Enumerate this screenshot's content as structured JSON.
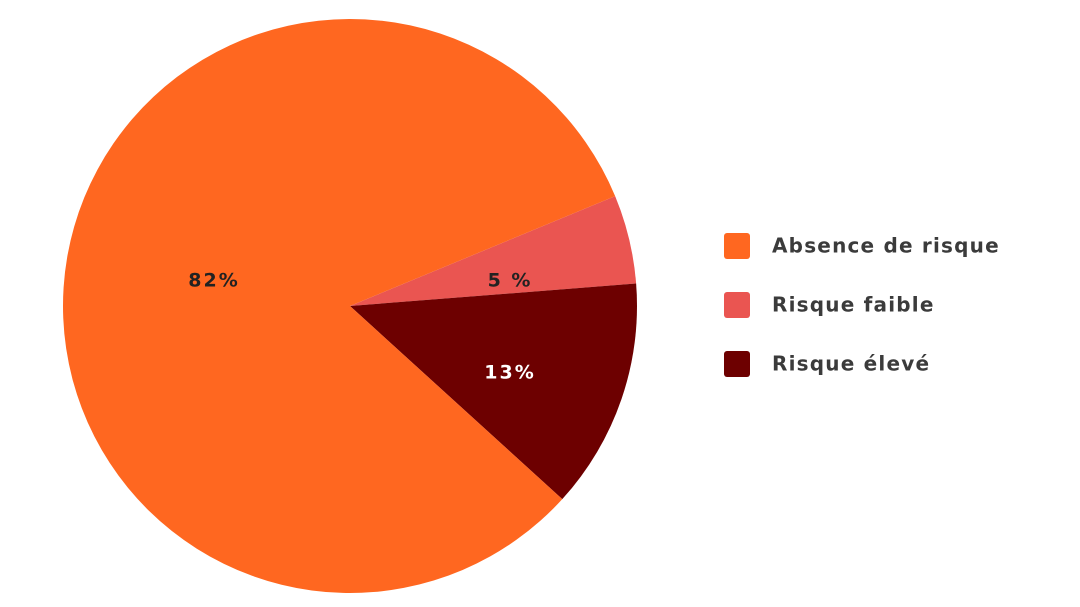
{
  "chart_data": {
    "type": "pie",
    "slices": [
      {
        "label": "Absence de risque",
        "value": 82,
        "display": "82%",
        "color": "#ff6720",
        "label_color": "#222222"
      },
      {
        "label": "Risque faible",
        "value": 5,
        "display": "5 %",
        "color": "#ea5551",
        "label_color": "#222222"
      },
      {
        "label": "Risque élevé",
        "value": 13,
        "display": "13%",
        "color": "#6d0000",
        "label_color": "#ffffff"
      }
    ],
    "legend_position": "right"
  }
}
